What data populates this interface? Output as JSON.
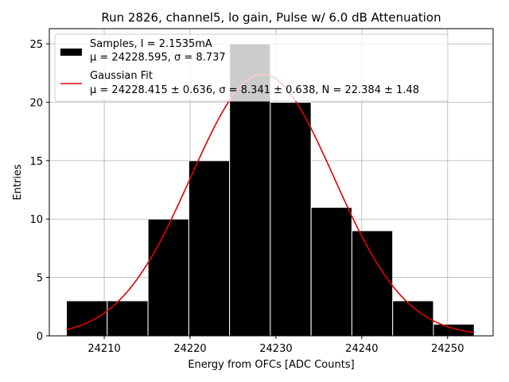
{
  "chart_data": {
    "type": "bar",
    "title": "Run 2826, channel5, lo gain, Pulse w/ 6.0 dB Attenuation",
    "xlabel": "Energy from OFCs [ADC Counts]",
    "ylabel": "Entries",
    "xlim": [
      24203.6,
      24255.3
    ],
    "ylim": [
      0,
      26.3
    ],
    "xticks": [
      24210,
      24220,
      24230,
      24240,
      24250
    ],
    "yticks": [
      0,
      5,
      10,
      15,
      20,
      25
    ],
    "grid": true,
    "legend_placement": "top-left",
    "bins": {
      "edges": [
        24205.6,
        24210.35,
        24215.1,
        24219.85,
        24224.6,
        24229.35,
        24234.1,
        24238.85,
        24243.6,
        24248.35,
        24253.1
      ],
      "counts": [
        3,
        3,
        10,
        15,
        25,
        20,
        11,
        9,
        3,
        1
      ]
    },
    "series": [
      {
        "label": "Samples, I = 2.1535mA",
        "stats": "μ = 24228.595, σ = 8.737",
        "color": "#000000"
      },
      {
        "label": "Gaussian Fit",
        "stats": "μ = 24228.415 ± 0.636, σ = 8.341 ± 0.638, N = 22.384 ± 1.48",
        "color": "#e00000",
        "mu": 24228.415,
        "sigma": 8.341,
        "N": 22.384
      }
    ]
  }
}
